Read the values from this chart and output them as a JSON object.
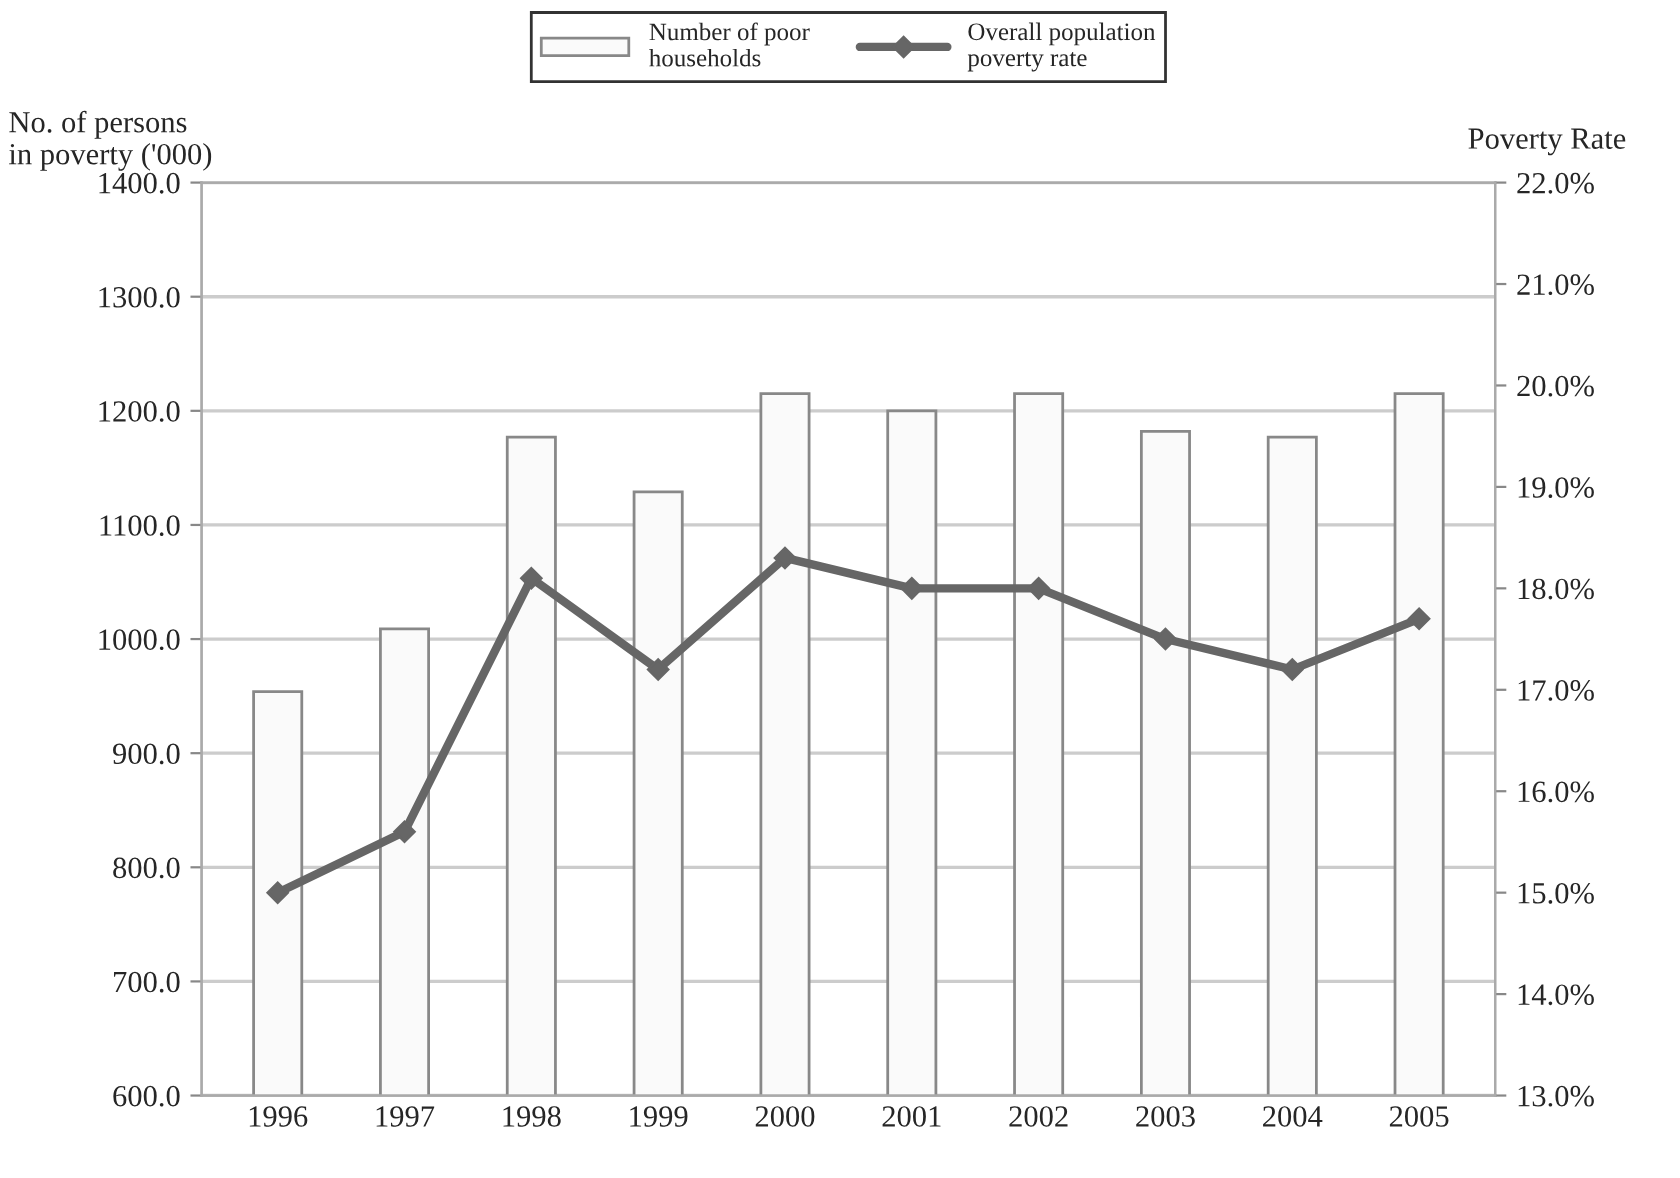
{
  "chart_data": {
    "type": "bar",
    "categories": [
      "1996",
      "1997",
      "1998",
      "1999",
      "2000",
      "2001",
      "2002",
      "2003",
      "2004",
      "2005"
    ],
    "ylabel": "No. of persons\nin poverty ('000)",
    "y2label": "Poverty Rate",
    "series": [
      {
        "name": "Number of poor\nhouseholds",
        "color": "#fafafa",
        "values": [
          954,
          1009,
          1177,
          1129,
          1215,
          1200,
          1215,
          1182,
          1177,
          1215
        ]
      },
      {
        "name": "Overall population\npoverty rate",
        "type": "line",
        "axis": "y2",
        "color": "#666666",
        "marker": "diamond",
        "values": [
          15.0,
          15.6,
          18.1,
          17.2,
          18.3,
          18.0,
          18.0,
          17.5,
          17.2,
          17.7
        ]
      }
    ],
    "ylim": [
      600,
      1400
    ],
    "yticks": [
      {
        "value": 600,
        "label": "600.0"
      },
      {
        "value": 700,
        "label": "700.0"
      },
      {
        "value": 800,
        "label": "800.0"
      },
      {
        "value": 900,
        "label": "900.0"
      },
      {
        "value": 1000,
        "label": "1000.0"
      },
      {
        "value": 1100,
        "label": "1100.0"
      },
      {
        "value": 1200,
        "label": "1200.0"
      },
      {
        "value": 1300,
        "label": "1300.0"
      },
      {
        "value": 1400,
        "label": "1400.0"
      }
    ],
    "y2lim": [
      13,
      22
    ],
    "y2ticks": [
      {
        "value": 13,
        "label": "13.0%"
      },
      {
        "value": 14,
        "label": "14.0%"
      },
      {
        "value": 15,
        "label": "15.0%"
      },
      {
        "value": 16,
        "label": "16.0%"
      },
      {
        "value": 17,
        "label": "17.0%"
      },
      {
        "value": 18,
        "label": "18.0%"
      },
      {
        "value": 19,
        "label": "19.0%"
      },
      {
        "value": 20,
        "label": "20.0%"
      },
      {
        "value": 21,
        "label": "21.0%"
      },
      {
        "value": 22,
        "label": "22.0%"
      }
    ],
    "grid": "y",
    "legend": "top"
  }
}
